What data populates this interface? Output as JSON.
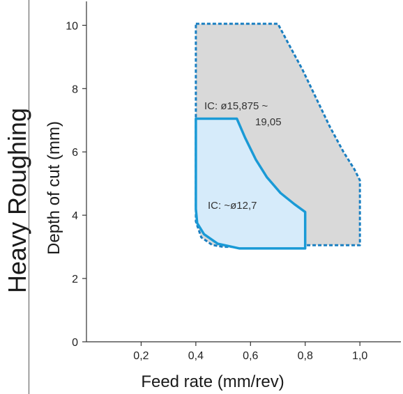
{
  "side_title": "Heavy Roughing",
  "chart_data": {
    "type": "area",
    "xlabel": "Feed rate (mm/rev)",
    "ylabel": "Depth of cut (mm)",
    "xlim": [
      0,
      1.15
    ],
    "ylim": [
      0,
      10.8
    ],
    "x_ticks": [
      {
        "value": 0.2,
        "label": "0,2"
      },
      {
        "value": 0.4,
        "label": "0,4"
      },
      {
        "value": 0.6,
        "label": "0,6"
      },
      {
        "value": 0.8,
        "label": "0,8"
      },
      {
        "value": 1.0,
        "label": "1,0"
      }
    ],
    "y_ticks": [
      {
        "value": 0,
        "label": "0"
      },
      {
        "value": 2,
        "label": "2"
      },
      {
        "value": 4,
        "label": "4"
      },
      {
        "value": 6,
        "label": "6"
      },
      {
        "value": 8,
        "label": "8"
      },
      {
        "value": 10,
        "label": "10"
      }
    ],
    "series": [
      {
        "name": "IC: ø15,875 ~ 19,05",
        "label_lines": [
          "IC: ø15,875 ~",
          "19,05"
        ],
        "fill": "#d9d9d9",
        "stroke": "#1a7fc1",
        "dashed": true,
        "outline": [
          [
            0.4,
            10.05
          ],
          [
            0.7,
            10.05
          ],
          [
            0.74,
            9.4
          ],
          [
            0.79,
            8.6
          ],
          [
            0.84,
            7.7
          ],
          [
            0.89,
            6.8
          ],
          [
            0.94,
            6.0
          ],
          [
            0.98,
            5.45
          ],
          [
            1.0,
            5.1
          ],
          [
            1.0,
            3.05
          ],
          [
            0.8,
            3.05
          ],
          [
            0.8,
            3.0
          ],
          [
            0.5,
            3.0
          ],
          [
            0.46,
            3.06
          ],
          [
            0.42,
            3.3
          ],
          [
            0.4,
            3.8
          ],
          [
            0.4,
            10.05
          ]
        ]
      },
      {
        "name": "IC: ~ø12,7",
        "label_lines": [
          "IC: ~ø12,7"
        ],
        "fill": "#d6ebfa",
        "stroke": "#1a9ad6",
        "dashed": false,
        "outline": [
          [
            0.4,
            7.05
          ],
          [
            0.55,
            7.05
          ],
          [
            0.58,
            6.45
          ],
          [
            0.62,
            5.75
          ],
          [
            0.66,
            5.2
          ],
          [
            0.71,
            4.7
          ],
          [
            0.76,
            4.35
          ],
          [
            0.8,
            4.1
          ],
          [
            0.8,
            2.95
          ],
          [
            0.56,
            2.95
          ],
          [
            0.48,
            3.1
          ],
          [
            0.43,
            3.4
          ],
          [
            0.405,
            3.75
          ],
          [
            0.4,
            4.2
          ],
          [
            0.4,
            7.05
          ]
        ]
      }
    ],
    "colors": {
      "axis": "#333333",
      "blue": "#1a9ad6"
    }
  }
}
